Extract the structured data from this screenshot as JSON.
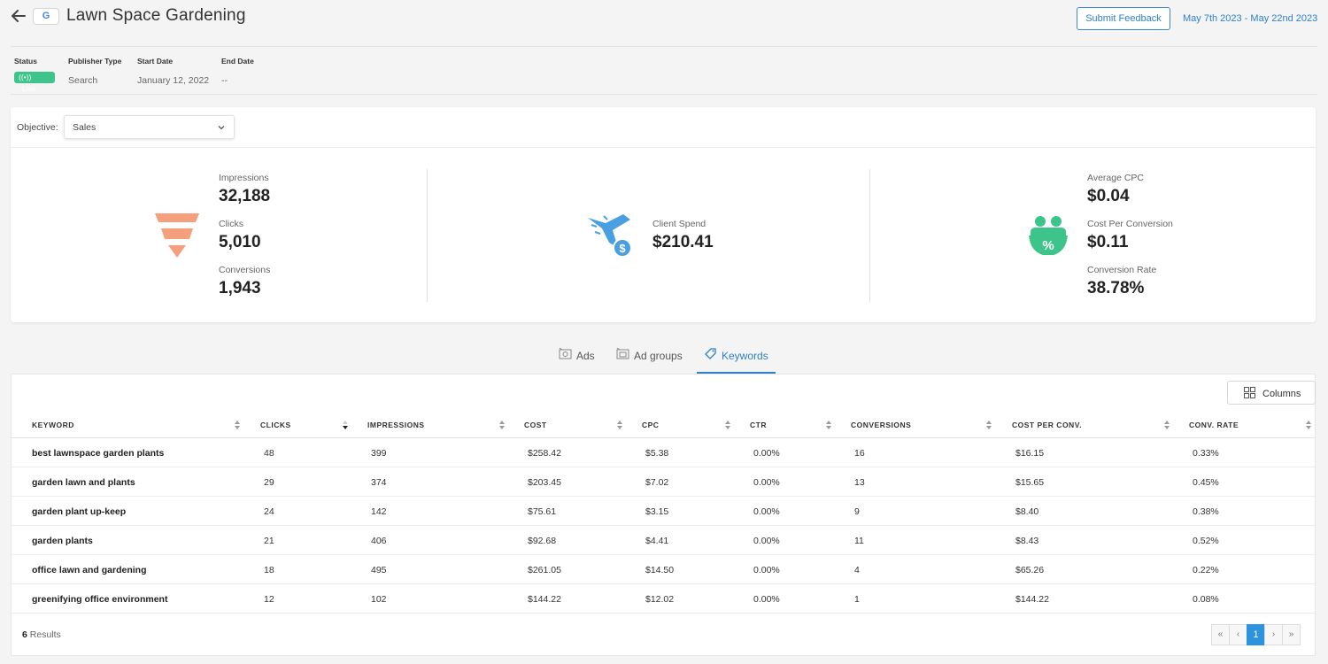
{
  "header": {
    "title": "Lawn Space Gardening",
    "badge": "G",
    "feedback_label": "Submit Feedback",
    "date_range": "May 7th 2023 - May 22nd 2023"
  },
  "meta": {
    "status_label": "Status",
    "status_value": "Live",
    "publisher_label": "Publisher Type",
    "publisher_value": "Search",
    "start_label": "Start Date",
    "start_value": "January 12, 2022",
    "end_label": "End Date",
    "end_value": "--"
  },
  "objective": {
    "label": "Objective:",
    "value": "Sales"
  },
  "metrics": {
    "impressions_label": "Impressions",
    "impressions": "32,188",
    "clicks_label": "Clicks",
    "clicks": "5,010",
    "conversions_label": "Conversions",
    "conversions": "1,943",
    "spend_label": "Client Spend",
    "spend": "$210.41",
    "avg_cpc_label": "Average CPC",
    "avg_cpc": "$0.04",
    "cpconv_label": "Cost Per Conversion",
    "cpconv": "$0.11",
    "conv_rate_label": "Conversion Rate",
    "conv_rate": "38.78%"
  },
  "tabs": [
    {
      "label": "Ads",
      "icon": "ads-icon"
    },
    {
      "label": "Ad groups",
      "icon": "ad-groups-icon"
    },
    {
      "label": "Keywords",
      "icon": "keywords-tag-icon",
      "active": true
    }
  ],
  "table": {
    "columns_label": "Columns",
    "headers": [
      "KEYWORD",
      "CLICKS",
      "IMPRESSIONS",
      "COST",
      "CPC",
      "CTR",
      "CONVERSIONS",
      "COST PER CONV.",
      "CONV. RATE"
    ],
    "rows": [
      [
        "best lawnspace garden plants",
        "48",
        "399",
        "$258.42",
        "$5.38",
        "0.00%",
        "16",
        "$16.15",
        "0.33%"
      ],
      [
        "garden lawn and plants",
        "29",
        "374",
        "$203.45",
        "$7.02",
        "0.00%",
        "13",
        "$15.65",
        "0.45%"
      ],
      [
        "garden plant up-keep",
        "24",
        "142",
        "$75.61",
        "$3.15",
        "0.00%",
        "9",
        "$8.40",
        "0.38%"
      ],
      [
        "garden plants",
        "21",
        "406",
        "$92.68",
        "$4.41",
        "0.00%",
        "11",
        "$8.43",
        "0.52%"
      ],
      [
        "office lawn and gardening",
        "18",
        "495",
        "$261.05",
        "$14.50",
        "0.00%",
        "4",
        "$65.26",
        "0.22%"
      ],
      [
        "greenifying office environment",
        "12",
        "102",
        "$144.22",
        "$12.02",
        "0.00%",
        "1",
        "$144.22",
        "0.08%"
      ]
    ],
    "results_count": "6",
    "results_label": "Results"
  },
  "pagination": {
    "first": "«",
    "prev": "‹",
    "current": "1",
    "next": "›",
    "last": "»"
  },
  "colors": {
    "accent": "#2f80c9",
    "live": "#3dc48a",
    "funnel": "#f5a07c",
    "spend_icon": "#4a9fe0",
    "cpa_icon": "#3dc48a"
  }
}
